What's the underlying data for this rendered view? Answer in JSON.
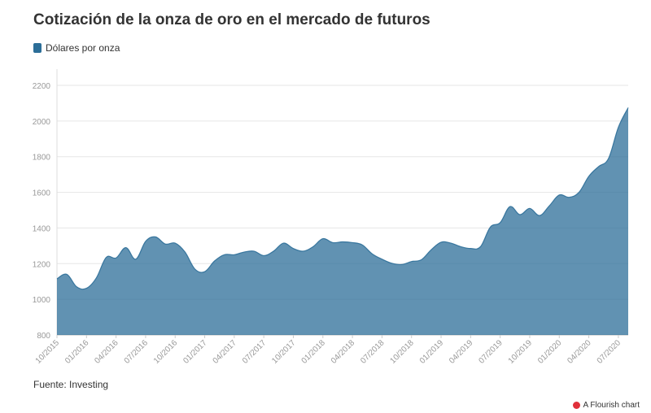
{
  "header": {
    "title": "Cotización de la onza de oro en el mercado de futuros"
  },
  "legend": {
    "label": "Dólares por onza",
    "color": "#2c6e98"
  },
  "footer": {
    "source": "Fuente: Investing",
    "credit": "A Flourish chart"
  },
  "chart_data": {
    "type": "area",
    "title": "Cotización de la onza de oro en el mercado de futuros",
    "ylabel": "",
    "xlabel": "",
    "ylim": [
      800,
      2200
    ],
    "yticks": [
      800,
      1000,
      1200,
      1400,
      1600,
      1800,
      2000,
      2200
    ],
    "xlim": [
      "2015-10",
      "2020-08"
    ],
    "xticks": [
      "10/2015",
      "01/2016",
      "04/2016",
      "07/2016",
      "10/2016",
      "01/2017",
      "04/2017",
      "07/2017",
      "10/2017",
      "01/2018",
      "04/2018",
      "07/2018",
      "10/2018",
      "01/2019",
      "04/2019",
      "07/2019",
      "10/2019",
      "01/2020",
      "04/2020",
      "07/2020"
    ],
    "grid": true,
    "series": [
      {
        "name": "Dólares por onza",
        "color": "#2c6e98",
        "x": [
          "2015-10",
          "2015-11",
          "2015-12",
          "2016-01",
          "2016-02",
          "2016-03",
          "2016-04",
          "2016-05",
          "2016-06",
          "2016-07",
          "2016-08",
          "2016-09",
          "2016-10",
          "2016-11",
          "2016-12",
          "2017-01",
          "2017-02",
          "2017-03",
          "2017-04",
          "2017-05",
          "2017-06",
          "2017-07",
          "2017-08",
          "2017-09",
          "2017-10",
          "2017-11",
          "2017-12",
          "2018-01",
          "2018-02",
          "2018-03",
          "2018-04",
          "2018-05",
          "2018-06",
          "2018-07",
          "2018-08",
          "2018-09",
          "2018-10",
          "2018-11",
          "2018-12",
          "2019-01",
          "2019-02",
          "2019-03",
          "2019-04",
          "2019-05",
          "2019-06",
          "2019-07",
          "2019-08",
          "2019-09",
          "2019-10",
          "2019-11",
          "2019-12",
          "2020-01",
          "2020-02",
          "2020-03",
          "2020-04",
          "2020-05",
          "2020-06",
          "2020-07",
          "2020-08"
        ],
        "values": [
          1115,
          1140,
          1070,
          1062,
          1120,
          1235,
          1232,
          1290,
          1225,
          1325,
          1350,
          1310,
          1315,
          1265,
          1170,
          1155,
          1215,
          1250,
          1250,
          1265,
          1270,
          1245,
          1270,
          1315,
          1285,
          1270,
          1295,
          1340,
          1318,
          1322,
          1318,
          1305,
          1255,
          1225,
          1202,
          1195,
          1212,
          1222,
          1278,
          1320,
          1315,
          1295,
          1285,
          1295,
          1405,
          1430,
          1520,
          1475,
          1510,
          1470,
          1525,
          1585,
          1572,
          1600,
          1690,
          1745,
          1790,
          1965,
          2075
        ]
      }
    ]
  }
}
